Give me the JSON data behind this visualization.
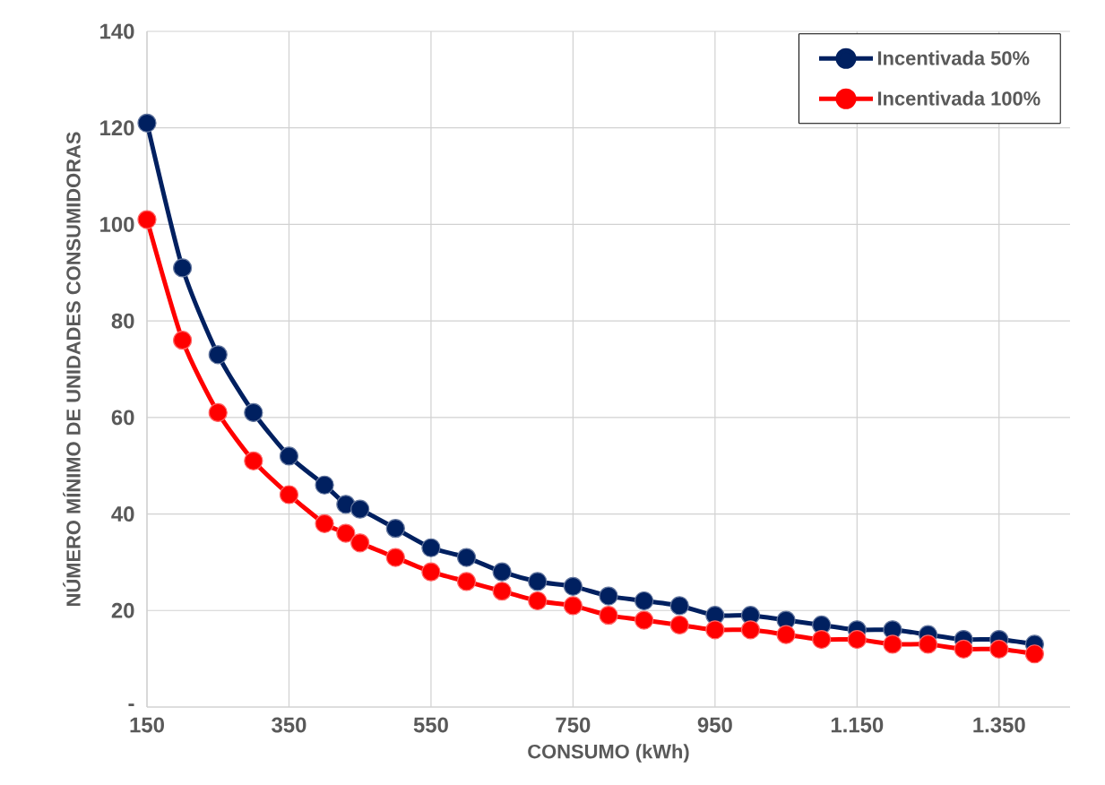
{
  "chart_data": {
    "type": "line",
    "xlabel": "CONSUMO (kWh)",
    "ylabel": "NÚMERO MÍNIMO DE UNIDADES CONSUMIDORAS",
    "x": [
      150,
      200,
      250,
      300,
      350,
      400,
      430,
      450,
      500,
      550,
      600,
      650,
      700,
      750,
      800,
      850,
      900,
      950,
      1000,
      1050,
      1100,
      1150,
      1200,
      1250,
      1300,
      1350,
      1400
    ],
    "series": [
      {
        "name": "Incentivada 50%",
        "color": "#002060",
        "values": [
          121,
          91,
          73,
          61,
          52,
          46,
          42,
          41,
          37,
          33,
          31,
          28,
          26,
          25,
          23,
          22,
          21,
          19,
          19,
          18,
          17,
          16,
          16,
          15,
          14,
          14,
          13
        ]
      },
      {
        "name": "Incentivada 100%",
        "color": "#ff0000",
        "values": [
          101,
          76,
          61,
          51,
          44,
          38,
          36,
          34,
          31,
          28,
          26,
          24,
          22,
          21,
          19,
          18,
          17,
          16,
          16,
          15,
          14,
          14,
          13,
          13,
          12,
          12,
          11
        ]
      }
    ],
    "xlim": [
      150,
      1450
    ],
    "ylim": [
      0,
      140
    ],
    "xticks": [
      150,
      350,
      550,
      750,
      950,
      {
        "value": 1150,
        "label": "1.150"
      },
      {
        "value": 1350,
        "label": "1.350"
      }
    ],
    "yticks": [
      {
        "value": 0,
        "label": "-"
      },
      20,
      40,
      60,
      80,
      100,
      120,
      140
    ],
    "grid": true,
    "legend": "top right",
    "marker": "circle"
  }
}
